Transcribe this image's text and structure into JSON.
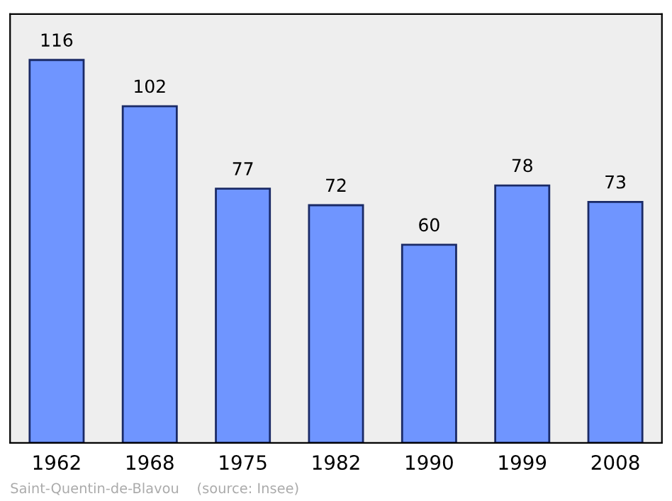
{
  "chart_data": {
    "type": "bar",
    "categories": [
      "1962",
      "1968",
      "1975",
      "1982",
      "1990",
      "1999",
      "2008"
    ],
    "values": [
      116,
      102,
      77,
      72,
      60,
      78,
      73
    ],
    "color": "#6f95ff",
    "data_labels": true,
    "grid": false,
    "legend": false,
    "tick_labels": "x",
    "annotations": [
      "Saint-Quentin-de-Blavou    (source: Insee)"
    ]
  }
}
